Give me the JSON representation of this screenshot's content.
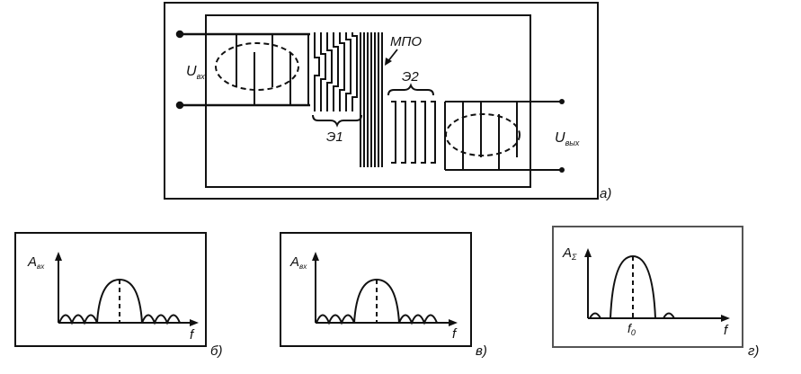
{
  "figure": {
    "panel_a": {
      "label": "а)",
      "input_label_main": "U",
      "input_label_sub": "вх",
      "output_label_main": "U",
      "output_label_sub": "вых",
      "electrode1": "Э1",
      "electrode2": "Э2",
      "substrate": "МПО"
    },
    "panel_b": {
      "label": "б)",
      "y_main": "A",
      "y_sub": "вх",
      "x_axis": "f"
    },
    "panel_v": {
      "label": "в)",
      "y_main": "A",
      "y_sub": "вх",
      "x_axis": "f"
    },
    "panel_g": {
      "label": "г)",
      "y_main": "A",
      "y_sub": "Σ",
      "x_axis": "f",
      "center_main": "f",
      "center_sub": "0"
    }
  },
  "colors": {
    "line": "#111111",
    "frame_gray": "#555555",
    "background": "#ffffff"
  }
}
